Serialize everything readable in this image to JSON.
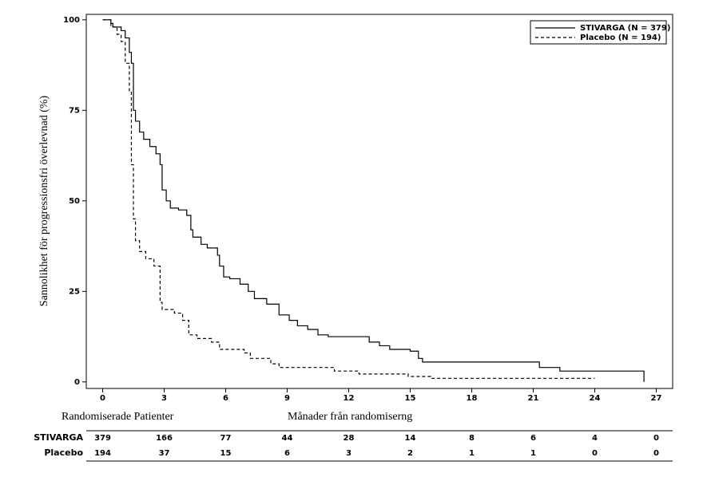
{
  "chart_data": {
    "type": "step",
    "ylabel": "Sannolikhet för progressionsfri överlevnad (%)",
    "xlabel": "Månader från randomiserng",
    "xlim": [
      -0.8,
      27.8
    ],
    "ylim": [
      -1.8,
      101.5
    ],
    "xticks": [
      0,
      3,
      6,
      9,
      12,
      15,
      18,
      21,
      24,
      27
    ],
    "yticks": [
      0,
      25,
      50,
      75,
      100
    ],
    "legend": "upper right",
    "series": [
      {
        "name": "STIVARGA (N = 379)",
        "color": "#000000",
        "dash": "solid",
        "x": [
          0,
          0.3,
          0.4,
          0.5,
          0.9,
          1.1,
          1.3,
          1.4,
          1.5,
          1.6,
          1.8,
          2,
          2.3,
          2.6,
          2.8,
          2.9,
          3.1,
          3.3,
          3.7,
          4.1,
          4.3,
          4.4,
          4.8,
          5.1,
          5.6,
          5.7,
          5.9,
          6.2,
          6.7,
          7.1,
          7.4,
          8,
          8.6,
          9.1,
          9.5,
          10,
          10.5,
          11,
          12.6,
          13,
          13.5,
          14,
          15,
          15.4,
          15.6,
          18,
          21.3,
          22.3,
          26.2,
          26.4
        ],
        "y": [
          100,
          100,
          99,
          98,
          97,
          95,
          91,
          88,
          75,
          72,
          69,
          67,
          65,
          63,
          60,
          53,
          50,
          48,
          47.5,
          46,
          42,
          40,
          38,
          37,
          35,
          32,
          29,
          28.5,
          27,
          25,
          23,
          21.5,
          18.5,
          17,
          15.5,
          14.5,
          13,
          12.5,
          12.5,
          11,
          10,
          9,
          8.5,
          6.5,
          5.5,
          5.5,
          4,
          3,
          3,
          0
        ]
      },
      {
        "name": "Placebo (N = 194)",
        "color": "#000000",
        "dash": "dashed",
        "x": [
          0,
          0.4,
          0.7,
          0.9,
          1.1,
          1.3,
          1.4,
          1.5,
          1.6,
          1.8,
          2.1,
          2.5,
          2.8,
          2.9,
          3.5,
          3.9,
          4.2,
          4.6,
          5.3,
          5.7,
          6.9,
          7.2,
          8.2,
          8.6,
          11.3,
          12.5,
          14.9,
          16,
          24
        ],
        "y": [
          100,
          98,
          96,
          94,
          88,
          80,
          60,
          45,
          39,
          36,
          34,
          32,
          22,
          20,
          19,
          17,
          13,
          12,
          11,
          9,
          8,
          6.5,
          5,
          4,
          3,
          2.2,
          1.5,
          1,
          1
        ]
      }
    ],
    "risk_table": {
      "title": "Randomiserade Patienter",
      "rows": [
        {
          "name": "STIVARGA",
          "values": [
            379,
            166,
            77,
            44,
            28,
            14,
            8,
            6,
            4,
            0
          ]
        },
        {
          "name": "Placebo",
          "values": [
            194,
            37,
            15,
            6,
            3,
            2,
            1,
            1,
            0,
            0
          ]
        }
      ]
    }
  }
}
